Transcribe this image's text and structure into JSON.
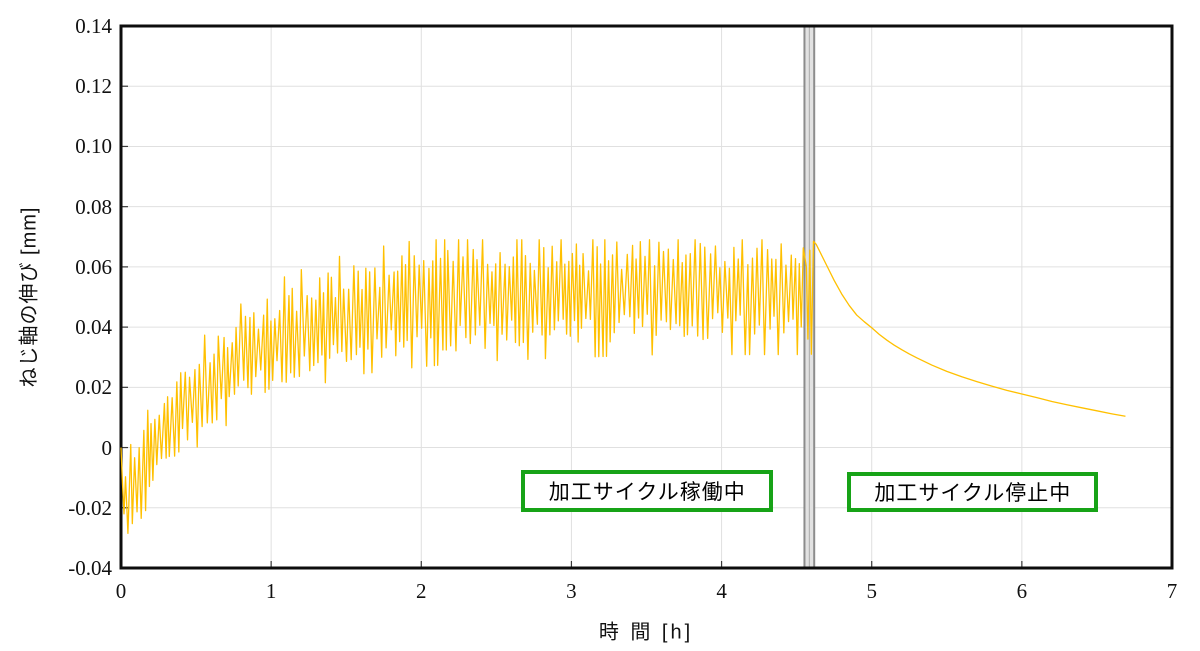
{
  "chart_data": {
    "type": "line",
    "title": "",
    "xlabel": "時 間 [h]",
    "ylabel": "ねじ軸の伸び [mm]",
    "xlim": [
      0,
      7
    ],
    "ylim": [
      -0.04,
      0.14
    ],
    "grid": true,
    "legend": "none",
    "x_ticks": [
      {
        "v": 0,
        "label": "0"
      },
      {
        "v": 1,
        "label": "1"
      },
      {
        "v": 2,
        "label": "2"
      },
      {
        "v": 3,
        "label": "3"
      },
      {
        "v": 4,
        "label": "4"
      },
      {
        "v": 5,
        "label": "5"
      },
      {
        "v": 6,
        "label": "6"
      },
      {
        "v": 7,
        "label": "7"
      }
    ],
    "y_ticks": [
      {
        "v": 0.14,
        "label": "0.14"
      },
      {
        "v": 0.12,
        "label": "0.12"
      },
      {
        "v": 0.1,
        "label": "0.10"
      },
      {
        "v": 0.08,
        "label": "0.08"
      },
      {
        "v": 0.06,
        "label": "0.06"
      },
      {
        "v": 0.04,
        "label": "0.04"
      },
      {
        "v": 0.02,
        "label": "0.02"
      },
      {
        "v": 0,
        "label": "0"
      },
      {
        "v": -0.02,
        "label": "-0.02"
      },
      {
        "v": -0.04,
        "label": "-0.04"
      }
    ],
    "colors": {
      "line": "#FFC000",
      "grid": "#e0e0e0",
      "axis": "#0d0d0d",
      "tick": "#3a3a3a",
      "band_fill": "#e2e2e2",
      "band_edge": "#8c8c8c",
      "band_center": "#aaaaaa",
      "annotation_border": "#17a317",
      "annotation_bg": "#ffffff",
      "text": "#111111"
    },
    "series": [
      {
        "name": "screw-shaft-elongation",
        "operating_phase": {
          "t_start": 0,
          "t_end": 4.555,
          "lead_in_points": [
            [
              0,
              0
            ],
            [
              0.01,
              -0.012
            ],
            [
              0.02,
              -0.022
            ]
          ],
          "mean_envelope": [
            [
              0,
              -0.004
            ],
            [
              0.03,
              -0.016
            ],
            [
              0.08,
              -0.013
            ],
            [
              0.15,
              -0.006
            ],
            [
              0.25,
              0.002
            ],
            [
              0.4,
              0.012
            ],
            [
              0.6,
              0.022
            ],
            [
              0.8,
              0.029
            ],
            [
              1.0,
              0.035
            ],
            [
              1.3,
              0.041
            ],
            [
              1.6,
              0.045
            ],
            [
              2.0,
              0.048
            ],
            [
              2.5,
              0.05
            ],
            [
              3.0,
              0.051
            ],
            [
              3.6,
              0.052
            ],
            [
              4.555,
              0.052
            ]
          ],
          "amplitude_envelope": [
            [
              0,
              0.01
            ],
            [
              0.1,
              0.012
            ],
            [
              0.5,
              0.013
            ],
            [
              1.0,
              0.015
            ],
            [
              2.0,
              0.016
            ],
            [
              4.555,
              0.016
            ]
          ],
          "half_cycle_h": 0.015,
          "value_min": -0.0285,
          "value_max": 0.069,
          "noise_seed": 7
        },
        "transition_points": [
          [
            4.565,
            0.06
          ],
          [
            4.575,
            0.036
          ],
          [
            4.588,
            0.0655
          ],
          [
            4.598,
            0.031
          ],
          [
            4.612,
            0.0685
          ]
        ],
        "stop_phase_points": [
          [
            4.63,
            0.0675
          ],
          [
            4.66,
            0.0645
          ],
          [
            4.7,
            0.0605
          ],
          [
            4.75,
            0.0555
          ],
          [
            4.8,
            0.051
          ],
          [
            4.85,
            0.0472
          ],
          [
            4.9,
            0.044
          ],
          [
            4.95,
            0.0418
          ],
          [
            5.0,
            0.0398
          ],
          [
            5.05,
            0.0376
          ],
          [
            5.1,
            0.0357
          ],
          [
            5.15,
            0.034
          ],
          [
            5.2,
            0.0325
          ],
          [
            5.25,
            0.0311
          ],
          [
            5.3,
            0.0298
          ],
          [
            5.4,
            0.0274
          ],
          [
            5.5,
            0.0253
          ],
          [
            5.6,
            0.0235
          ],
          [
            5.7,
            0.0219
          ],
          [
            5.8,
            0.0204
          ],
          [
            5.9,
            0.019
          ],
          [
            6.0,
            0.0178
          ],
          [
            6.1,
            0.0166
          ],
          [
            6.2,
            0.0153
          ],
          [
            6.3,
            0.0142
          ],
          [
            6.4,
            0.0132
          ],
          [
            6.5,
            0.0122
          ],
          [
            6.6,
            0.0112
          ],
          [
            6.69,
            0.0104
          ]
        ]
      }
    ],
    "event_band": {
      "t0": 4.552,
      "t1": 4.617
    },
    "annotations": [
      {
        "label": "加工サイクル稼働中",
        "rect": {
          "t0": 2.665,
          "t1": 4.345,
          "v_top": -0.0074,
          "v_bot": -0.0214
        }
      },
      {
        "label": "加工サイクル停止中",
        "rect": {
          "t0": 4.837,
          "t1": 6.51,
          "v_top": -0.0081,
          "v_bot": -0.0214
        }
      }
    ]
  }
}
